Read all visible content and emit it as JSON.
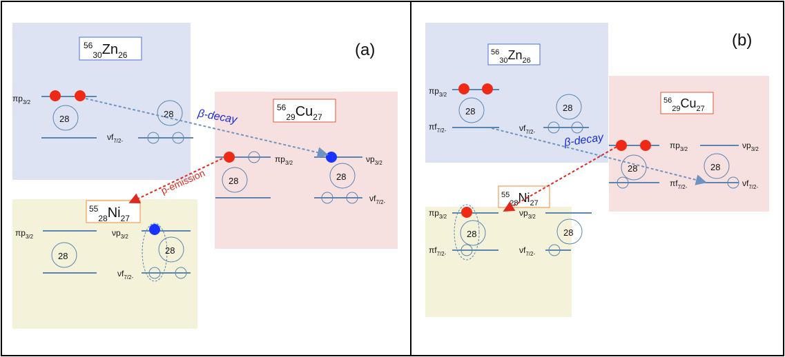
{
  "panels": [
    {
      "tag": "(a)",
      "zn": {
        "mass": "56",
        "z": "30",
        "sym": "Zn",
        "n": "26"
      },
      "cu": {
        "mass": "56",
        "z": "29",
        "sym": "Cu",
        "n": "27"
      },
      "ni": {
        "mass": "55",
        "z": "28",
        "sym": "Ni",
        "n": "27"
      },
      "zn_pi_label": "πp3/2",
      "zn_nu_label": "νf7/2-",
      "zn_core": "28",
      "cu_pi_label": "πp3/2",
      "cu_nu_p_label": "νp3/2",
      "cu_nu_f_label": "νf7/2-",
      "cu_core_left": "28",
      "cu_core_right": "28",
      "ni_pi_label": "πp3/2",
      "ni_nu_p_label": "νp3/2",
      "ni_nu_f_label": "νf7/2-",
      "ni_core_left": "28",
      "ni_core_right": "28",
      "beta": "β-decay",
      "pem": "p-emission"
    },
    {
      "tag": "(b)",
      "zn": {
        "mass": "56",
        "z": "30",
        "sym": "Zn",
        "n": "26"
      },
      "cu": {
        "mass": "56",
        "z": "29",
        "sym": "Cu",
        "n": "27"
      },
      "ni": {
        "mass": "55",
        "z": "28",
        "sym": "Ni",
        "n": "27"
      },
      "zn_pi_p_label": "πp3/2",
      "zn_pi_f_label": "πf7/2-",
      "zn_nu_label": "νf7/2-",
      "zn_core_left": "28",
      "zn_core_right": "28",
      "cu_pi_p_label": "πp3/2",
      "cu_pi_f_label": "πf7/2-",
      "cu_nu_p_label": "νp3/2",
      "cu_nu_f_label": "νf7/2-",
      "cu_core_left": "28",
      "cu_core_right": "28",
      "ni_pi_p_label": "πp3/2",
      "ni_pi_f_label": "πf7/2-",
      "ni_nu_p_label": "νp3/2",
      "ni_nu_f_label": "νf7/2-",
      "ni_core_left": "28",
      "ni_core_right": "28",
      "beta": "β-decay"
    }
  ],
  "colors": {
    "blue_box": "#dde3f2",
    "pink_box": "#f6e0e0",
    "yellow_box": "#f4f3da",
    "level": "#5b84b1",
    "proton": "#ee2a16",
    "neutron": "#1a32ff",
    "beta_text": "#1a2bd6",
    "pem_text": "#e0281c",
    "arrow_blue": "#6f93c0",
    "arrow_red": "#e0281c"
  }
}
